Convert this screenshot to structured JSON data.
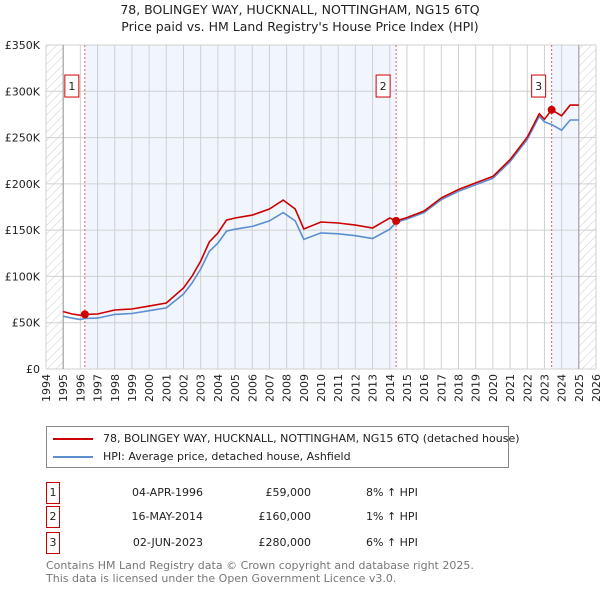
{
  "chart_data": {
    "type": "line",
    "title": "78, BOLINGEY WAY, HUCKNALL, NOTTINGHAM, NG15 6TQ",
    "subtitle": "Price paid vs. HM Land Registry's House Price Index (HPI)",
    "xlim": [
      1994,
      2026
    ],
    "ylim": [
      0,
      350000
    ],
    "x_ticks": [
      "1994",
      "1995",
      "1996",
      "1997",
      "1998",
      "1999",
      "2000",
      "2001",
      "2002",
      "2003",
      "2004",
      "2005",
      "2006",
      "2007",
      "2008",
      "2009",
      "2010",
      "2011",
      "2012",
      "2013",
      "2014",
      "2015",
      "2016",
      "2017",
      "2018",
      "2019",
      "2020",
      "2021",
      "2022",
      "2023",
      "2024",
      "2025",
      "2026"
    ],
    "y_ticks": [
      {
        "v": 0,
        "label": "£0"
      },
      {
        "v": 50000,
        "label": "£50K"
      },
      {
        "v": 100000,
        "label": "£100K"
      },
      {
        "v": 150000,
        "label": "£150K"
      },
      {
        "v": 200000,
        "label": "£200K"
      },
      {
        "v": 250000,
        "label": "£250K"
      },
      {
        "v": 300000,
        "label": "£300K"
      },
      {
        "v": 350000,
        "label": "£350K"
      }
    ],
    "grid": true,
    "data_range": [
      1995,
      2025
    ],
    "series": [
      {
        "name": "78, BOLINGEY WAY, HUCKNALL, NOTTINGHAM, NG15 6TQ (detached house)",
        "color": "#cc0000",
        "x": [
          1995,
          1995.5,
          1996,
          1996.26,
          1997,
          1998,
          1999,
          2000,
          2001,
          2002,
          2002.5,
          2003,
          2003.5,
          2004,
          2004.5,
          2005,
          2006,
          2007,
          2007.8,
          2008.5,
          2009,
          2010,
          2011,
          2012,
          2013,
          2014,
          2014.37,
          2015,
          2016,
          2017,
          2018,
          2019,
          2020,
          2021,
          2022,
          2022.7,
          2023,
          2023.42,
          2024,
          2024.5,
          2025
        ],
        "y": [
          62000,
          59500,
          58000,
          59000,
          59400,
          63700,
          64800,
          68000,
          71300,
          87500,
          100400,
          116600,
          137200,
          146900,
          160900,
          163100,
          166300,
          172800,
          182500,
          172800,
          151200,
          158800,
          157700,
          155500,
          152300,
          163100,
          160000,
          163600,
          170700,
          184800,
          193900,
          201000,
          208100,
          226200,
          250500,
          275700,
          269700,
          280000,
          273500,
          285100,
          285100
        ]
      },
      {
        "name": "HPI: Average price, detached house, Ashfield",
        "color": "#5b8fd0",
        "x": [
          1995,
          1995.5,
          1996,
          1996.26,
          1997,
          1998,
          1999,
          2000,
          2001,
          2002,
          2002.5,
          2003,
          2003.5,
          2004,
          2004.5,
          2005,
          2006,
          2007,
          2007.8,
          2008.5,
          2009,
          2010,
          2011,
          2012,
          2013,
          2014,
          2014.37,
          2015,
          2016,
          2017,
          2018,
          2019,
          2020,
          2021,
          2022,
          2022.7,
          2023,
          2023.42,
          2024,
          2024.5,
          2025
        ],
        "y": [
          57000,
          55000,
          53500,
          54600,
          55000,
          59000,
          60000,
          63000,
          66000,
          81000,
          93000,
          108000,
          127000,
          136000,
          149000,
          151000,
          154000,
          160000,
          169000,
          160000,
          140000,
          147000,
          146000,
          144000,
          141000,
          151000,
          158400,
          162000,
          169000,
          183000,
          192000,
          199000,
          206000,
          224000,
          248000,
          273000,
          267000,
          264000,
          258000,
          269000,
          269000
        ]
      }
    ],
    "sales": [
      {
        "label": "1",
        "x": 1996.26,
        "y": 59000,
        "date": "04-APR-1996",
        "price": "£59,000",
        "hpi": "8% ↑ HPI"
      },
      {
        "label": "2",
        "x": 2014.37,
        "y": 160000,
        "date": "16-MAY-2014",
        "price": "£160,000",
        "hpi": "1% ↑ HPI"
      },
      {
        "label": "3",
        "x": 2023.42,
        "y": 280000,
        "date": "02-JUN-2023",
        "price": "£280,000",
        "hpi": "6% ↑ HPI"
      }
    ],
    "legend_placement": "bottom"
  },
  "legend": {
    "property": "78, BOLINGEY WAY, HUCKNALL, NOTTINGHAM, NG15 6TQ (detached house)",
    "hpi": "HPI: Average price, detached house, Ashfield"
  },
  "footer": {
    "line1": "Contains HM Land Registry data © Crown copyright and database right 2025.",
    "line2": "This data is licensed under the Open Government Licence v3.0."
  }
}
